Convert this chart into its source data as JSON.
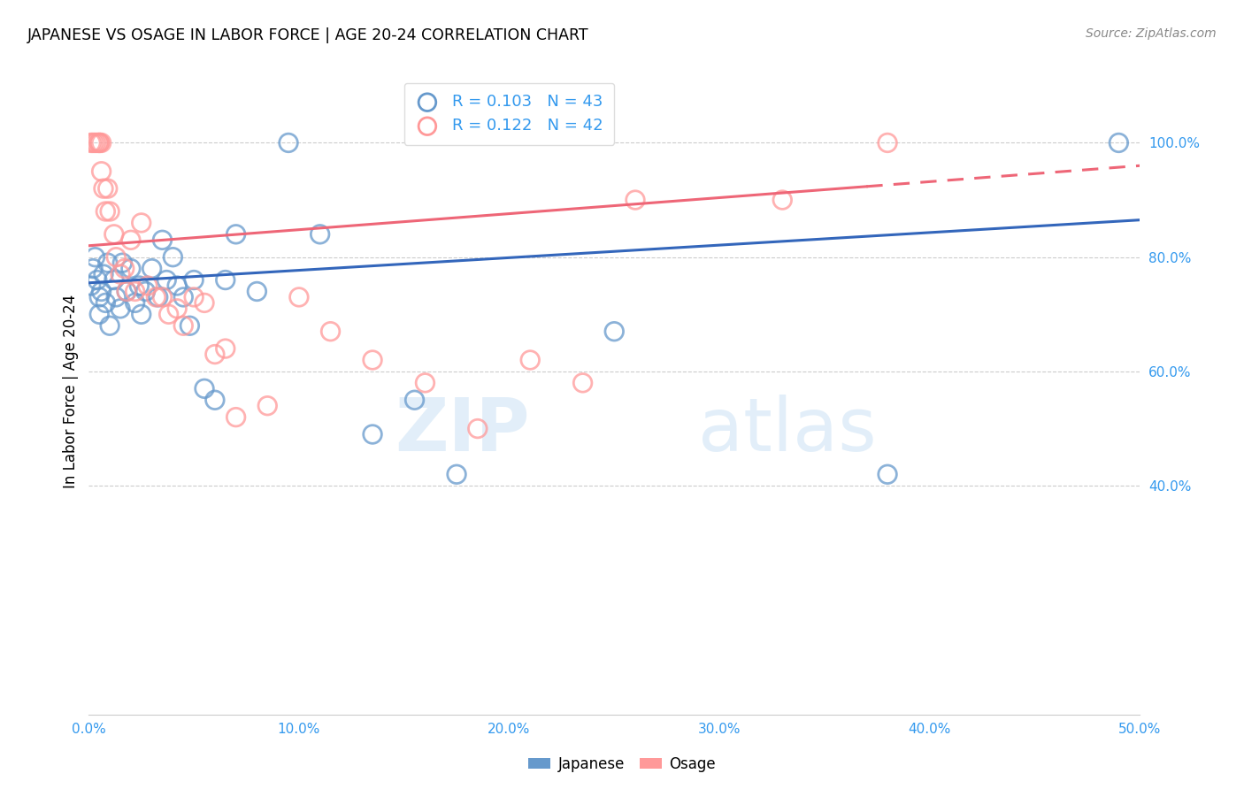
{
  "title": "JAPANESE VS OSAGE IN LABOR FORCE | AGE 20-24 CORRELATION CHART",
  "source": "Source: ZipAtlas.com",
  "ylabel": "In Labor Force | Age 20-24",
  "xlim": [
    0.0,
    0.5
  ],
  "ylim": [
    0.0,
    1.1
  ],
  "xtick_labels": [
    "0.0%",
    "10.0%",
    "20.0%",
    "30.0%",
    "40.0%",
    "50.0%"
  ],
  "xtick_values": [
    0.0,
    0.1,
    0.2,
    0.3,
    0.4,
    0.5
  ],
  "ytick_labels": [
    "40.0%",
    "60.0%",
    "80.0%",
    "100.0%"
  ],
  "ytick_values": [
    0.4,
    0.6,
    0.8,
    1.0
  ],
  "legend_labels_bottom": [
    "Japanese",
    "Osage"
  ],
  "japanese_color": "#6699CC",
  "osage_color": "#FF9999",
  "japanese_line_color": "#3366BB",
  "osage_line_color": "#EE6677",
  "R_japanese": 0.103,
  "N_japanese": 43,
  "R_osage": 0.122,
  "N_osage": 42,
  "watermark_zip": "ZIP",
  "watermark_atlas": "atlas",
  "japanese_x": [
    0.001,
    0.002,
    0.003,
    0.004,
    0.005,
    0.005,
    0.006,
    0.007,
    0.008,
    0.009,
    0.01,
    0.012,
    0.013,
    0.015,
    0.016,
    0.018,
    0.02,
    0.022,
    0.024,
    0.025,
    0.027,
    0.03,
    0.033,
    0.035,
    0.037,
    0.04,
    0.042,
    0.045,
    0.048,
    0.05,
    0.055,
    0.06,
    0.065,
    0.07,
    0.08,
    0.095,
    0.11,
    0.135,
    0.155,
    0.175,
    0.25,
    0.38,
    0.49
  ],
  "japanese_y": [
    0.75,
    0.78,
    0.8,
    0.76,
    0.73,
    0.7,
    0.74,
    0.77,
    0.72,
    0.79,
    0.68,
    0.76,
    0.73,
    0.71,
    0.79,
    0.74,
    0.78,
    0.72,
    0.75,
    0.7,
    0.74,
    0.78,
    0.73,
    0.83,
    0.76,
    0.8,
    0.75,
    0.73,
    0.68,
    0.76,
    0.57,
    0.55,
    0.76,
    0.84,
    0.74,
    1.0,
    0.84,
    0.49,
    0.55,
    0.42,
    0.67,
    0.42,
    1.0
  ],
  "osage_x": [
    0.001,
    0.002,
    0.003,
    0.004,
    0.005,
    0.005,
    0.006,
    0.006,
    0.007,
    0.008,
    0.009,
    0.01,
    0.012,
    0.013,
    0.015,
    0.017,
    0.018,
    0.02,
    0.022,
    0.025,
    0.028,
    0.032,
    0.035,
    0.038,
    0.042,
    0.045,
    0.05,
    0.055,
    0.06,
    0.065,
    0.07,
    0.085,
    0.1,
    0.115,
    0.135,
    0.16,
    0.185,
    0.21,
    0.235,
    0.26,
    0.33,
    0.38
  ],
  "osage_y": [
    1.0,
    1.0,
    1.0,
    1.0,
    1.0,
    1.0,
    1.0,
    0.95,
    0.92,
    0.88,
    0.92,
    0.88,
    0.84,
    0.8,
    0.77,
    0.78,
    0.74,
    0.83,
    0.74,
    0.86,
    0.75,
    0.73,
    0.73,
    0.7,
    0.71,
    0.68,
    0.73,
    0.72,
    0.63,
    0.64,
    0.52,
    0.54,
    0.73,
    0.67,
    0.62,
    0.58,
    0.5,
    0.62,
    0.58,
    0.9,
    0.9,
    1.0
  ]
}
